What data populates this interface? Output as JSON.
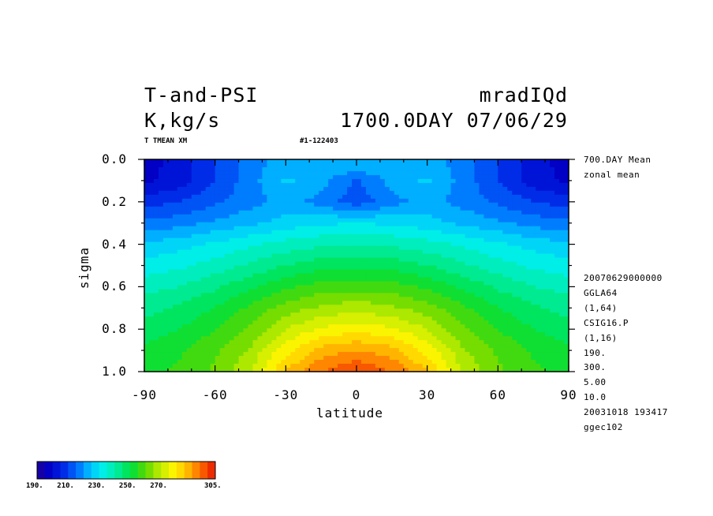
{
  "header": {
    "title_line1": "T-and-PSI",
    "title_line2": "K,kg/s",
    "run_name": "mradIQd",
    "time_stamp": "1700.0DAY 07/06/29",
    "var_name": "T TMEAN XM",
    "range_label": "#1-122403"
  },
  "side_info": {
    "mean_label": "700.DAY Mean",
    "zonal_label": "zonal mean",
    "meta_lines": [
      "20070629000000",
      "GGLA64",
      "(1,64)",
      "CSIG16.P",
      "(1,16)",
      "190.",
      "300.",
      "5.00",
      "10.0",
      "20031018 193417",
      "ggec102"
    ]
  },
  "colorbar": {
    "labels": [
      "190.",
      "210.",
      "230.",
      "250.",
      "270.",
      "305."
    ]
  },
  "chart_data": {
    "type": "heatmap",
    "title": "T-and-PSI",
    "units": "K,kg/s",
    "xlabel": "latitude",
    "ylabel": "sigma",
    "xlim": [
      -90,
      90
    ],
    "ylim": [
      1.0,
      0.0
    ],
    "x_ticks": [
      "-90",
      "-60",
      "-30",
      "0",
      "30",
      "60",
      "90"
    ],
    "y_ticks": [
      "0.0",
      "0.2",
      "0.4",
      "0.6",
      "0.8",
      "1.0"
    ],
    "contour_min": 190,
    "contour_max": 300,
    "contour_interval": 5,
    "x": [
      -90,
      -75,
      -60,
      -45,
      -30,
      -15,
      0,
      15,
      30,
      45,
      60,
      75,
      90
    ],
    "y": [
      0.02,
      0.1,
      0.2,
      0.3,
      0.4,
      0.5,
      0.6,
      0.7,
      0.8,
      0.9,
      1.0
    ],
    "z": [
      [
        198,
        202,
        210,
        218,
        222,
        224,
        225,
        224,
        222,
        218,
        210,
        202,
        198
      ],
      [
        199,
        202,
        210,
        218,
        226,
        222,
        214,
        222,
        226,
        218,
        210,
        202,
        199
      ],
      [
        208,
        210,
        214,
        218,
        222,
        218,
        212,
        218,
        222,
        218,
        214,
        210,
        208
      ],
      [
        216,
        218,
        221,
        224,
        227,
        229,
        230,
        229,
        227,
        224,
        221,
        218,
        216
      ],
      [
        226,
        228,
        231,
        234,
        237,
        239,
        240,
        239,
        237,
        234,
        231,
        228,
        226
      ],
      [
        232,
        234,
        237,
        241,
        245,
        248,
        249,
        248,
        245,
        241,
        237,
        234,
        232
      ],
      [
        238,
        240,
        244,
        249,
        254,
        257,
        258,
        257,
        254,
        249,
        244,
        240,
        238
      ],
      [
        243,
        246,
        250,
        256,
        262,
        266,
        268,
        266,
        262,
        256,
        250,
        246,
        243
      ],
      [
        247,
        250,
        255,
        261,
        270,
        276,
        278,
        276,
        270,
        261,
        255,
        250,
        247
      ],
      [
        251,
        254,
        259,
        266,
        278,
        287,
        290,
        287,
        278,
        266,
        259,
        254,
        251
      ],
      [
        253,
        256,
        261,
        270,
        285,
        295,
        300,
        295,
        285,
        270,
        261,
        256,
        253
      ]
    ]
  }
}
